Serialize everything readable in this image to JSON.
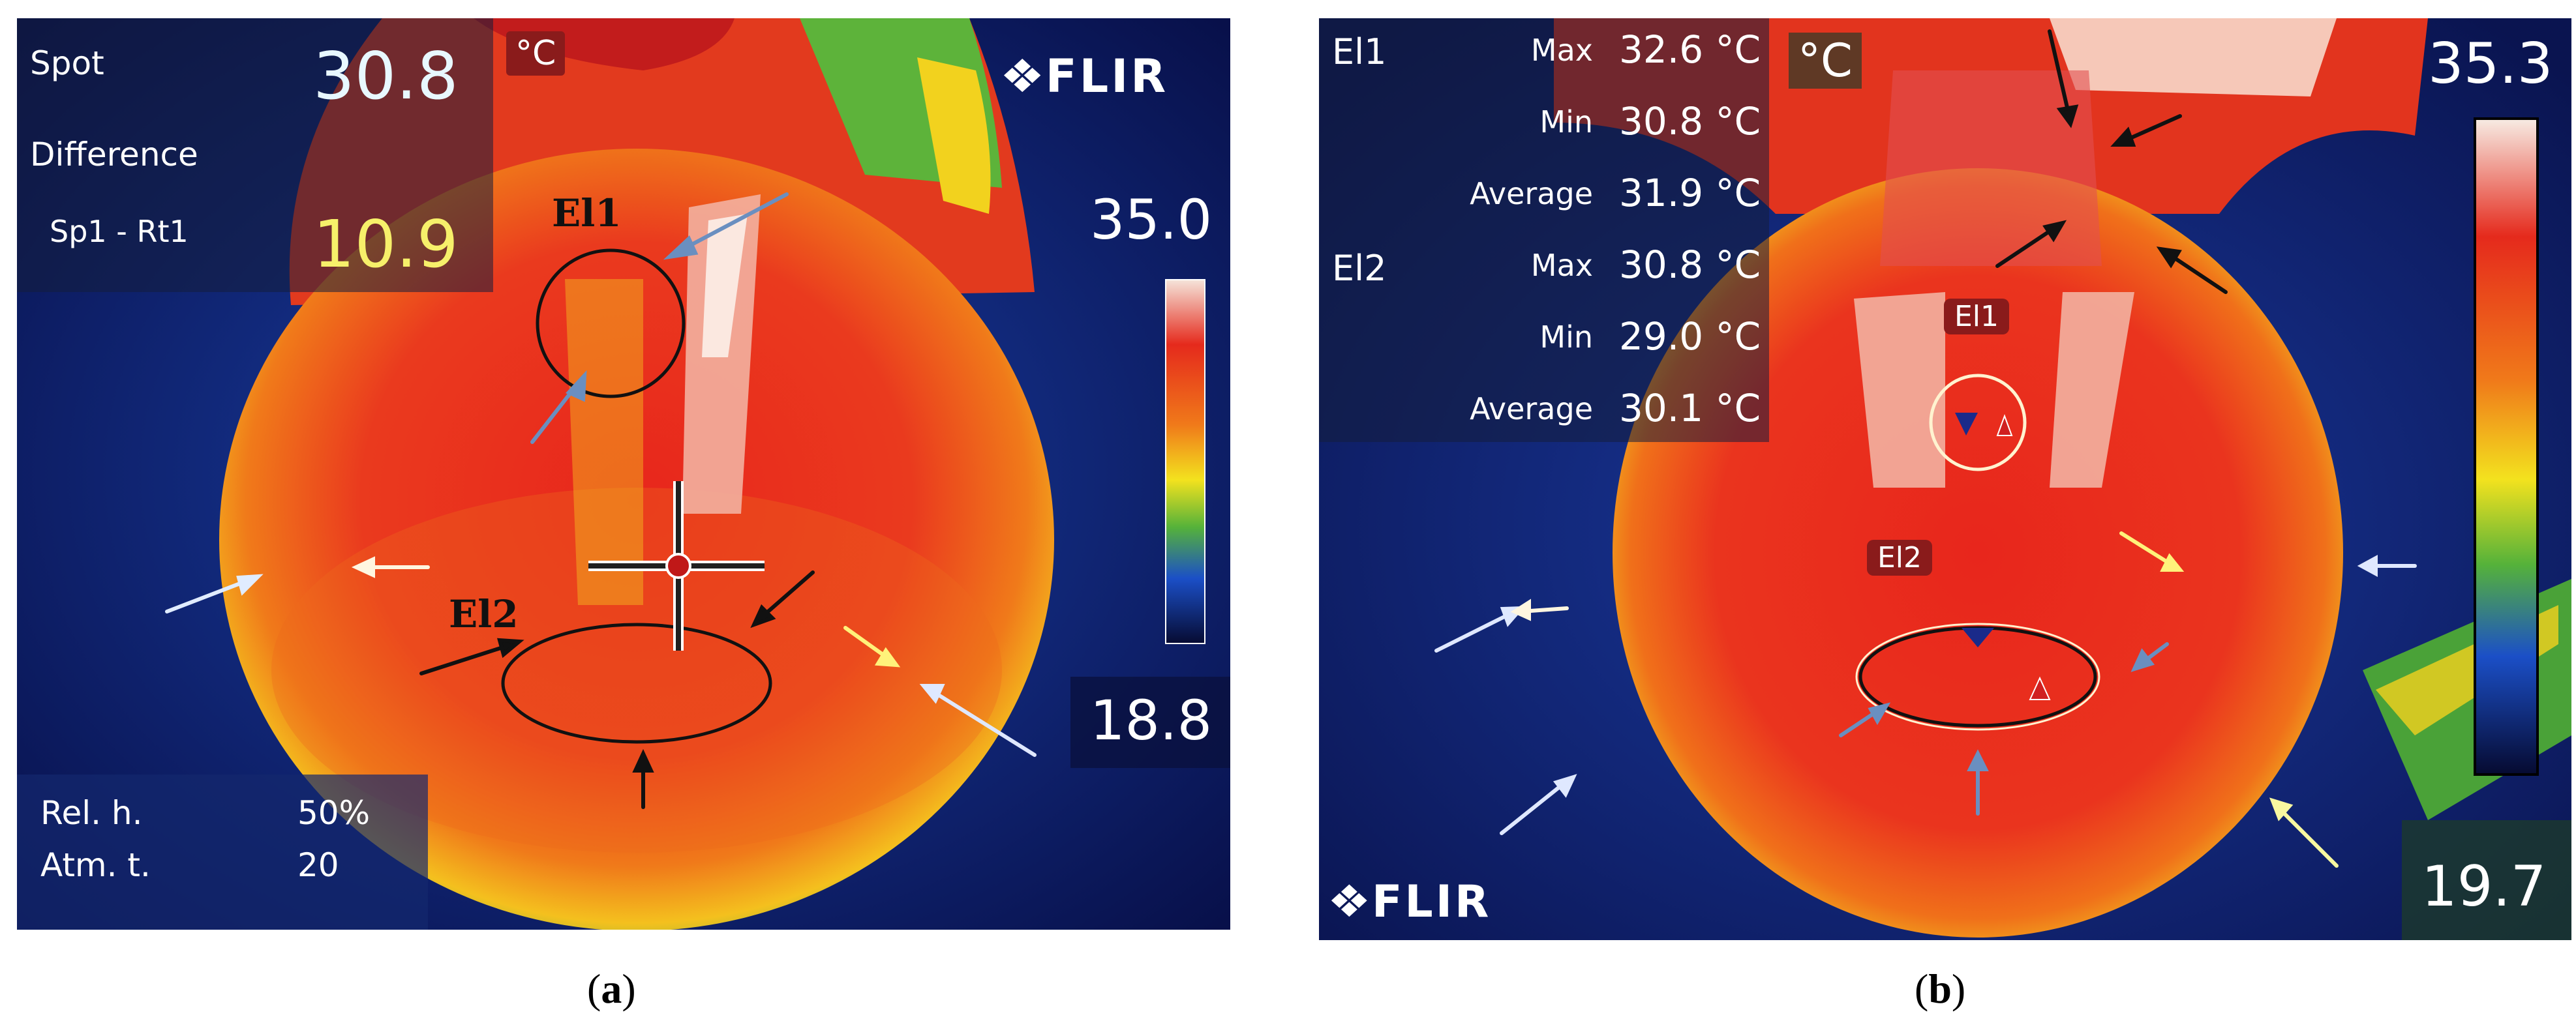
{
  "panel_a": {
    "unit": "°C",
    "readout": {
      "spot_label": "Spot",
      "spot_value": "30.8",
      "difference_label": "Difference",
      "diff_pair_label": "Sp1 - Rt1",
      "diff_value": "10.9"
    },
    "brand": "FLIR",
    "scale_max": "35.0",
    "scale_min": "18.8",
    "ellipse_labels": [
      "El1",
      "El2"
    ],
    "params": {
      "rel_h_label": "Rel. h.",
      "rel_h_value": "50%",
      "atm_t_label": "Atm. t.",
      "atm_t_value": "20"
    },
    "caption_open": "(",
    "caption_letter": "a",
    "caption_close": ")"
  },
  "panel_b": {
    "unit": "°C",
    "stats": [
      {
        "group": "El1",
        "label": "Max",
        "value": "32.6 °C"
      },
      {
        "group": "",
        "label": "Min",
        "value": "30.8 °C"
      },
      {
        "group": "",
        "label": "Average",
        "value": "31.9 °C"
      },
      {
        "group": "El2",
        "label": "Max",
        "value": "30.8 °C"
      },
      {
        "group": "",
        "label": "Min",
        "value": "29.0 °C"
      },
      {
        "group": "",
        "label": "Average",
        "value": "30.1 °C"
      }
    ],
    "brand": "FLIR",
    "scale_max": "35.3",
    "scale_min": "19.7",
    "ellipse_labels": [
      "El1",
      "El2"
    ],
    "caption_open": "(",
    "caption_letter": "b",
    "caption_close": ")"
  },
  "colors": {
    "background_cold": "#0a1650",
    "hot_red": "#e0201c",
    "warm_orange": "#f07a1a",
    "yellow": "#f4e21e",
    "green": "#59b33a"
  }
}
